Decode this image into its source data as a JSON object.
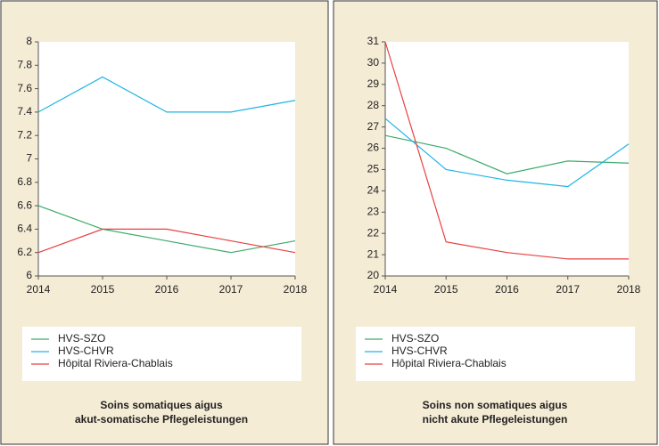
{
  "chart_data": [
    {
      "type": "line",
      "caption": [
        "Soins somatiques aigus",
        "akut-somatische Pflegeleistungen"
      ],
      "x": [
        2014,
        2015,
        2016,
        2017,
        2018
      ],
      "xlim": [
        2014,
        2018
      ],
      "xticks": [
        2014,
        2015,
        2016,
        2017,
        2018
      ],
      "ylim": [
        6,
        8
      ],
      "yticks": [
        6,
        6.2,
        6.4,
        6.6,
        6.8,
        7,
        7.2,
        7.4,
        7.6,
        7.8,
        8
      ],
      "series": [
        {
          "name": "HVS-SZO",
          "color": "#3daa6a",
          "values": [
            6.6,
            6.4,
            6.3,
            6.2,
            6.3
          ]
        },
        {
          "name": "HVS-CHVR",
          "color": "#1fb4e6",
          "values": [
            7.4,
            7.7,
            7.4,
            7.4,
            7.5
          ]
        },
        {
          "name": "Hôpital Riviera-Chablais",
          "color": "#e8413f",
          "values": [
            6.2,
            6.4,
            6.4,
            6.3,
            6.2
          ]
        }
      ]
    },
    {
      "type": "line",
      "caption": [
        "Soins non somatiques aigus",
        "nicht akute Pflegeleistungen"
      ],
      "x": [
        2014,
        2015,
        2016,
        2017,
        2018
      ],
      "xlim": [
        2014,
        2018
      ],
      "xticks": [
        2014,
        2015,
        2016,
        2017,
        2018
      ],
      "ylim": [
        20,
        31
      ],
      "yticks": [
        20,
        21,
        22,
        23,
        24,
        25,
        26,
        27,
        28,
        29,
        30,
        31
      ],
      "series": [
        {
          "name": "HVS-SZO",
          "color": "#3daa6a",
          "values": [
            26.6,
            26.0,
            24.8,
            25.4,
            25.3
          ]
        },
        {
          "name": "HVS-CHVR",
          "color": "#1fb4e6",
          "values": [
            27.4,
            25.0,
            24.5,
            24.2,
            26.2
          ]
        },
        {
          "name": "Hôpital Riviera-Chablais",
          "color": "#e8413f",
          "values": [
            31.0,
            21.6,
            21.1,
            20.8,
            20.8
          ]
        }
      ]
    }
  ]
}
